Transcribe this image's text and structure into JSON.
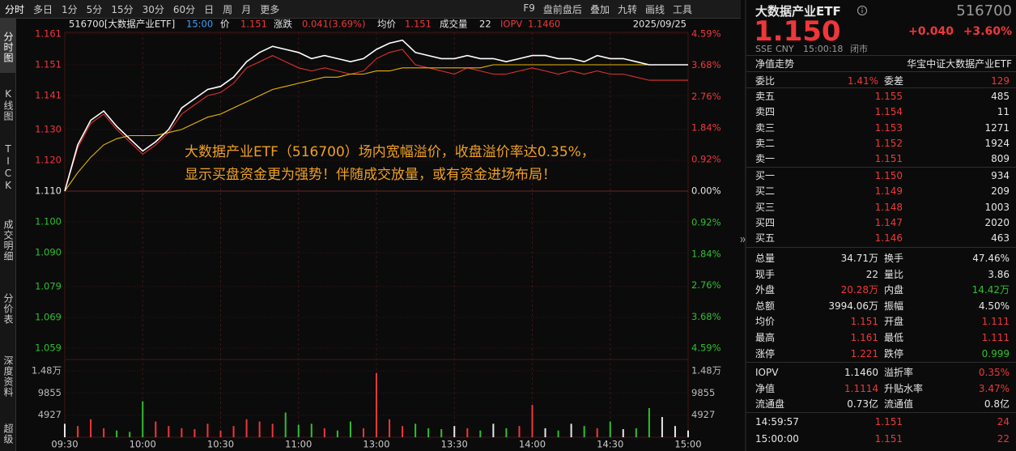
{
  "toolbar": {
    "tabs": [
      "分时",
      "多日",
      "1分",
      "5分",
      "15分",
      "30分",
      "60分",
      "日",
      "周",
      "月",
      "更多"
    ],
    "tools": [
      "F9",
      "盘前盘后",
      "叠加",
      "九转",
      "画线",
      "工具"
    ]
  },
  "side_tabs": [
    "分时图",
    "K线图",
    "TICK",
    "成交明细",
    "分价表",
    "深度资料",
    "超级"
  ],
  "chart_data": {
    "type": "line",
    "header": {
      "code_name": "516700[大数据产业ETF]",
      "time": "15:00",
      "price": "1.151",
      "change_label": "涨跌",
      "change": "0.041(3.69%)",
      "avg": "1.151",
      "volume_label": "成交量",
      "volume": "22",
      "iopv": "1.1460",
      "date": "2025/09/25"
    },
    "annotations": [
      "大数据产业ETF（516700）场内宽幅溢价，收盘溢价率达0.35%，",
      "显示买盘资金更为强势！伴随成交放量，或有资金进场布局！"
    ],
    "x": [
      0,
      5,
      10,
      15,
      20,
      25,
      30,
      35,
      40,
      45,
      50,
      55,
      60,
      65,
      70,
      75,
      80,
      85,
      90,
      95,
      100,
      105,
      110,
      115,
      120,
      125,
      130,
      135,
      140,
      145,
      150,
      155,
      160,
      165,
      170,
      175,
      180,
      185,
      190,
      195,
      200,
      205,
      210,
      215,
      220,
      225,
      230,
      235,
      240
    ],
    "xlim": [
      0,
      240
    ],
    "xticks": [
      {
        "value": 0,
        "label": "09:30"
      },
      {
        "value": 30,
        "label": "10:00"
      },
      {
        "value": 60,
        "label": "10:30"
      },
      {
        "value": 90,
        "label": "11:00"
      },
      {
        "value": 120,
        "label": "13:00"
      },
      {
        "value": 150,
        "label": "13:30"
      },
      {
        "value": 180,
        "label": "14:00"
      },
      {
        "value": 210,
        "label": "14:30"
      },
      {
        "value": 240,
        "label": "15:00"
      }
    ],
    "ylim": [
      1.059,
      1.161
    ],
    "yticks": [
      1.161,
      1.151,
      1.141,
      {
        "value": 1.13,
        "label": "1.130"
      },
      {
        "value": 1.12,
        "label": "1.120"
      },
      {
        "value": 1.11,
        "label": "1.110"
      },
      {
        "value": 1.1,
        "label": "1.100"
      },
      {
        "value": 1.09,
        "label": "1.090"
      },
      1.079,
      1.069,
      1.059
    ],
    "y2lim": [
      -4.59,
      4.59
    ],
    "y2ticks": [
      {
        "value": 4.59,
        "label": "4.59%"
      },
      {
        "value": 3.68,
        "label": "3.68%"
      },
      {
        "value": 2.76,
        "label": "2.76%"
      },
      {
        "value": 1.84,
        "label": "1.84%"
      },
      {
        "value": 0.92,
        "label": "0.92%"
      },
      {
        "value": 0,
        "label": "0.00%"
      },
      {
        "value": -0.92,
        "label": "0.92%"
      },
      {
        "value": -1.84,
        "label": "1.84%"
      },
      {
        "value": -2.76,
        "label": "2.76%"
      },
      {
        "value": -3.68,
        "label": "3.68%"
      },
      {
        "value": -4.59,
        "label": "4.59%"
      }
    ],
    "grid": true,
    "series": [
      {
        "name": "价",
        "color": "#ffffff",
        "values": [
          1.11,
          1.125,
          1.133,
          1.136,
          1.131,
          1.127,
          1.123,
          1.126,
          1.13,
          1.137,
          1.14,
          1.143,
          1.144,
          1.147,
          1.152,
          1.155,
          1.157,
          1.156,
          1.155,
          1.153,
          1.154,
          1.153,
          1.152,
          1.153,
          1.156,
          1.158,
          1.159,
          1.155,
          1.154,
          1.153,
          1.153,
          1.154,
          1.153,
          1.153,
          1.152,
          1.153,
          1.154,
          1.154,
          1.153,
          1.153,
          1.152,
          1.154,
          1.153,
          1.153,
          1.152,
          1.151,
          1.151,
          1.151,
          1.151
        ]
      },
      {
        "name": "均价",
        "color": "#e8b800",
        "values": [
          1.11,
          1.116,
          1.121,
          1.125,
          1.127,
          1.128,
          1.128,
          1.128,
          1.129,
          1.13,
          1.132,
          1.134,
          1.135,
          1.137,
          1.139,
          1.141,
          1.143,
          1.144,
          1.145,
          1.146,
          1.147,
          1.147,
          1.148,
          1.148,
          1.149,
          1.149,
          1.15,
          1.15,
          1.15,
          1.15,
          1.15,
          1.15,
          1.15,
          1.151,
          1.151,
          1.151,
          1.151,
          1.151,
          1.151,
          1.151,
          1.151,
          1.151,
          1.151,
          1.151,
          1.151,
          1.151,
          1.151,
          1.151,
          1.151
        ]
      },
      {
        "name": "IOPV",
        "color": "#e03030",
        "values": [
          1.11,
          1.124,
          1.132,
          1.135,
          1.13,
          1.126,
          1.122,
          1.125,
          1.129,
          1.135,
          1.138,
          1.141,
          1.142,
          1.145,
          1.15,
          1.152,
          1.154,
          1.152,
          1.15,
          1.149,
          1.15,
          1.149,
          1.148,
          1.149,
          1.153,
          1.155,
          1.156,
          1.151,
          1.15,
          1.149,
          1.148,
          1.15,
          1.149,
          1.148,
          1.148,
          1.149,
          1.15,
          1.149,
          1.148,
          1.149,
          1.148,
          1.149,
          1.148,
          1.148,
          1.147,
          1.146,
          1.146,
          1.146,
          1.146
        ]
      }
    ],
    "volume": {
      "values": [
        3000,
        2500,
        4000,
        2000,
        1500,
        1200,
        8000,
        3500,
        2500,
        2000,
        1800,
        3000,
        1500,
        2500,
        4000,
        3500,
        3000,
        5500,
        2800,
        3000,
        2000,
        1500,
        3500,
        2000,
        14300,
        4000,
        2500,
        3000,
        2000,
        1800,
        2500,
        2000,
        1500,
        3000,
        2000,
        2500,
        7200,
        2000,
        1500,
        3000,
        2500,
        2000,
        3500,
        1800,
        2000,
        6500,
        4500,
        2500,
        1500
      ],
      "ylim": [
        0,
        14800
      ],
      "yticks": [
        4927,
        9855,
        {
          "value": 14800,
          "label": "1.48万"
        }
      ]
    }
  },
  "quote": {
    "name": "大数据产业ETF",
    "code": "516700",
    "price": "1.150",
    "change": "+0.040",
    "change_pct": "+3.60%",
    "meta": [
      "SSE",
      "CNY",
      "15:00:18",
      "闭市"
    ],
    "nav_link": "净值走势",
    "fund_name": "华宝中证大数据产业ETF",
    "commission": [
      "委比",
      "1.41%",
      "委差",
      "129"
    ],
    "asks": [
      [
        "卖五",
        "1.155",
        "485"
      ],
      [
        "卖四",
        "1.154",
        "11"
      ],
      [
        "卖三",
        "1.153",
        "1271"
      ],
      [
        "卖二",
        "1.152",
        "1924"
      ],
      [
        "卖一",
        "1.151",
        "809"
      ]
    ],
    "bids": [
      [
        "买一",
        "1.150",
        "934"
      ],
      [
        "买二",
        "1.149",
        "209"
      ],
      [
        "买三",
        "1.148",
        "1003"
      ],
      [
        "买四",
        "1.147",
        "2020"
      ],
      [
        "买五",
        "1.146",
        "463"
      ]
    ],
    "stats": [
      [
        "总量",
        "34.71万",
        "换手",
        "47.46%"
      ],
      [
        "现手",
        "22",
        "量比",
        "3.86"
      ],
      [
        "外盘",
        "20.28万",
        "内盘",
        "14.42万"
      ],
      [
        "总额",
        "3994.06万",
        "振幅",
        "4.50%"
      ],
      [
        "均价",
        "1.151",
        "开盘",
        "1.111"
      ],
      [
        "最高",
        "1.161",
        "最低",
        "1.111"
      ],
      [
        "涨停",
        "1.221",
        "跌停",
        "0.999"
      ]
    ],
    "fund_stats": [
      [
        "IOPV",
        "1.1460",
        "溢折率",
        "0.35%"
      ],
      [
        "净值",
        "1.1114",
        "升贴水率",
        "3.47%"
      ],
      [
        "流通盘",
        "0.73亿",
        "流通值",
        "0.8亿"
      ]
    ],
    "trades": [
      [
        "14:59:57",
        "1.151",
        "24"
      ],
      [
        "15:00:00",
        "1.151",
        "22"
      ]
    ]
  }
}
